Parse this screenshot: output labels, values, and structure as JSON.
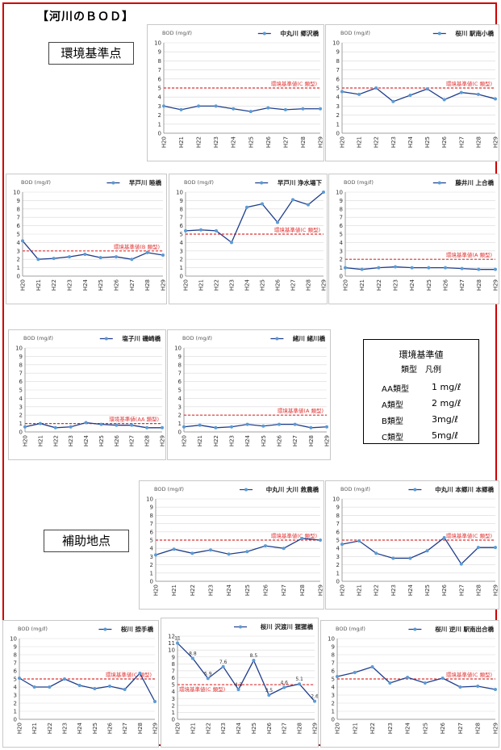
{
  "page": {
    "title": "【河川のＢＯＤ】",
    "section_main": "環境基準点",
    "section_aux": "補助地点"
  },
  "legend_box": {
    "title": "環境基準値",
    "subtitle": "類型　凡例",
    "rows": [
      {
        "cls": "AA類型",
        "val": "1 mg/ℓ"
      },
      {
        "cls": "A類型",
        "val": "2 mg/ℓ"
      },
      {
        "cls": "B類型",
        "val": "3mg/ℓ"
      },
      {
        "cls": "C類型",
        "val": "5mg/ℓ"
      }
    ]
  },
  "colors": {
    "series": "#1f3d8c",
    "marker": "#5b9bd5",
    "standard": "#e03030",
    "grid": "#d9d9d9"
  },
  "chart_data": [
    {
      "type": "line",
      "ylabel": "BOD (mg/ℓ)",
      "series_name": "中丸川 郷沢橋",
      "ylim": [
        0,
        10
      ],
      "categories": [
        "H20",
        "H21",
        "H22",
        "H23",
        "H24",
        "H25",
        "H26",
        "H27",
        "H28",
        "H29"
      ],
      "values": [
        3.0,
        2.6,
        3.0,
        3.0,
        2.7,
        2.4,
        2.8,
        2.6,
        2.7,
        2.7
      ],
      "standard": 5,
      "standard_label": "環境基準値(C 類型)"
    },
    {
      "type": "line",
      "ylabel": "BOD (mg/ℓ)",
      "series_name": "桜川 駅南小橋",
      "ylim": [
        0,
        10
      ],
      "categories": [
        "H20",
        "H21",
        "H22",
        "H23",
        "H24",
        "H25",
        "H26",
        "H27",
        "H28",
        "H29"
      ],
      "values": [
        4.6,
        4.3,
        5.0,
        3.5,
        4.2,
        4.9,
        3.7,
        4.5,
        4.3,
        3.8
      ],
      "standard": 5,
      "standard_label": "環境基準値(C 類型)"
    },
    {
      "type": "line",
      "ylabel": "BOD (mg/ℓ)",
      "series_name": "早戸川 睦橋",
      "ylim": [
        0,
        10
      ],
      "categories": [
        "H20",
        "H21",
        "H22",
        "H23",
        "H24",
        "H25",
        "H26",
        "H27",
        "H28",
        "H29"
      ],
      "values": [
        4.2,
        2.0,
        2.1,
        2.3,
        2.6,
        2.2,
        2.3,
        2.0,
        2.8,
        2.5
      ],
      "standard": 3,
      "standard_label": "環境基準値(B 類型)"
    },
    {
      "type": "line",
      "ylabel": "BOD (mg/ℓ)",
      "series_name": "早戸川 浄水場下",
      "ylim": [
        0,
        10
      ],
      "categories": [
        "H20",
        "H21",
        "H22",
        "H23",
        "H24",
        "H25",
        "H26",
        "H27",
        "H28",
        "H29"
      ],
      "values": [
        5.4,
        5.5,
        5.4,
        4.0,
        8.2,
        8.6,
        6.4,
        9.1,
        8.5,
        10.0
      ],
      "standard": 5,
      "standard_label": "環境基準値(C 類型)"
    },
    {
      "type": "line",
      "ylabel": "BOD (mg/ℓ)",
      "series_name": "藤井川 上合橋",
      "ylim": [
        0,
        10
      ],
      "categories": [
        "H20",
        "H21",
        "H22",
        "H23",
        "H24",
        "H25",
        "H26",
        "H27",
        "H28",
        "H29"
      ],
      "values": [
        1.0,
        0.8,
        1.0,
        1.1,
        1.0,
        1.0,
        1.0,
        0.9,
        0.8,
        0.8
      ],
      "standard": 2,
      "standard_label": "環境基準値(A 類型)"
    },
    {
      "type": "line",
      "ylabel": "BOD (mg/ℓ)",
      "series_name": "塩子川 磯崎橋",
      "ylim": [
        0,
        10
      ],
      "categories": [
        "H20",
        "H21",
        "H22",
        "H23",
        "H24",
        "H25",
        "H26",
        "H27",
        "H28",
        "H29"
      ],
      "values": [
        0.6,
        1.0,
        0.5,
        0.6,
        1.1,
        0.9,
        0.8,
        0.8,
        0.5,
        0.5
      ],
      "standard": 1,
      "standard_label": "環境基準値(AA 類型)"
    },
    {
      "type": "line",
      "ylabel": "BOD (mg/ℓ)",
      "series_name": "緒川 緒川橋",
      "ylim": [
        0,
        10
      ],
      "categories": [
        "H20",
        "H21",
        "H22",
        "H23",
        "H24",
        "H25",
        "H26",
        "H27",
        "H28",
        "H29"
      ],
      "values": [
        0.6,
        0.8,
        0.5,
        0.6,
        0.9,
        0.7,
        0.9,
        0.9,
        0.5,
        0.6
      ],
      "standard": 2,
      "standard_label": "環境基準値(A 類型)"
    },
    {
      "type": "line",
      "ylabel": "BOD (mg/ℓ)",
      "series_name": "中丸川 大川 救農橋",
      "ylim": [
        0,
        10
      ],
      "categories": [
        "H20",
        "H21",
        "H22",
        "H23",
        "H24",
        "H25",
        "H26",
        "H27",
        "H28",
        "H29"
      ],
      "values": [
        3.2,
        3.9,
        3.4,
        3.8,
        3.3,
        3.6,
        4.3,
        4.0,
        5.2,
        5.0
      ],
      "standard": 5,
      "standard_label": "環境基準値(C 類型)"
    },
    {
      "type": "line",
      "ylabel": "BOD (mg/ℓ)",
      "series_name": "中丸川 本郷川 本郷橋",
      "ylim": [
        0,
        10
      ],
      "categories": [
        "H20",
        "H21",
        "H22",
        "H23",
        "H24",
        "H25",
        "H26",
        "H27",
        "H28",
        "H29"
      ],
      "values": [
        4.5,
        4.9,
        3.4,
        2.8,
        2.8,
        3.7,
        5.3,
        2.1,
        4.1,
        4.1
      ],
      "standard": 5,
      "standard_label": "環境基準値(C 類型)"
    },
    {
      "type": "line",
      "ylabel": "BOD (mg/ℓ)",
      "series_name": "桜川 捺手橋",
      "ylim": [
        0,
        10
      ],
      "categories": [
        "H20",
        "H21",
        "H22",
        "H23",
        "H24",
        "H25",
        "H26",
        "H27",
        "H28",
        "H29"
      ],
      "values": [
        5.1,
        4.0,
        4.0,
        5.0,
        4.2,
        3.8,
        4.1,
        3.7,
        5.7,
        2.2
      ],
      "standard": 5,
      "standard_label": "環境基準値(C 類型)"
    },
    {
      "type": "line",
      "ylabel": "",
      "series_name": "桜川 沢渡川 猩猩橋",
      "ylim": [
        0,
        12
      ],
      "categories": [
        "H20",
        "H21",
        "H22",
        "H23",
        "H24",
        "H25",
        "H26",
        "H27",
        "H28",
        "H29"
      ],
      "values": [
        11,
        8.8,
        5.9,
        7.6,
        4.3,
        8.5,
        3.5,
        4.6,
        5.1,
        2.6
      ],
      "data_labels": [
        "11",
        "8.8",
        "5.9",
        "7.6",
        "4.3",
        "8.5",
        "3.5",
        "4.6",
        "5.1",
        "2.6"
      ],
      "standard": 5,
      "standard_label": "環境基準値(C 類型)"
    },
    {
      "type": "line",
      "ylabel": "BOD (mg/ℓ)",
      "series_name": "桜川 逆川 駅南出合橋",
      "ylim": [
        0,
        10
      ],
      "categories": [
        "H20",
        "H21",
        "H22",
        "H23",
        "H24",
        "H25",
        "H26",
        "H27",
        "H28",
        "H29"
      ],
      "values": [
        5.3,
        5.8,
        6.5,
        4.5,
        5.2,
        4.5,
        5.1,
        4.0,
        4.1,
        3.7
      ],
      "standard": 5,
      "standard_label": "環境基準値(C 類型)"
    }
  ]
}
